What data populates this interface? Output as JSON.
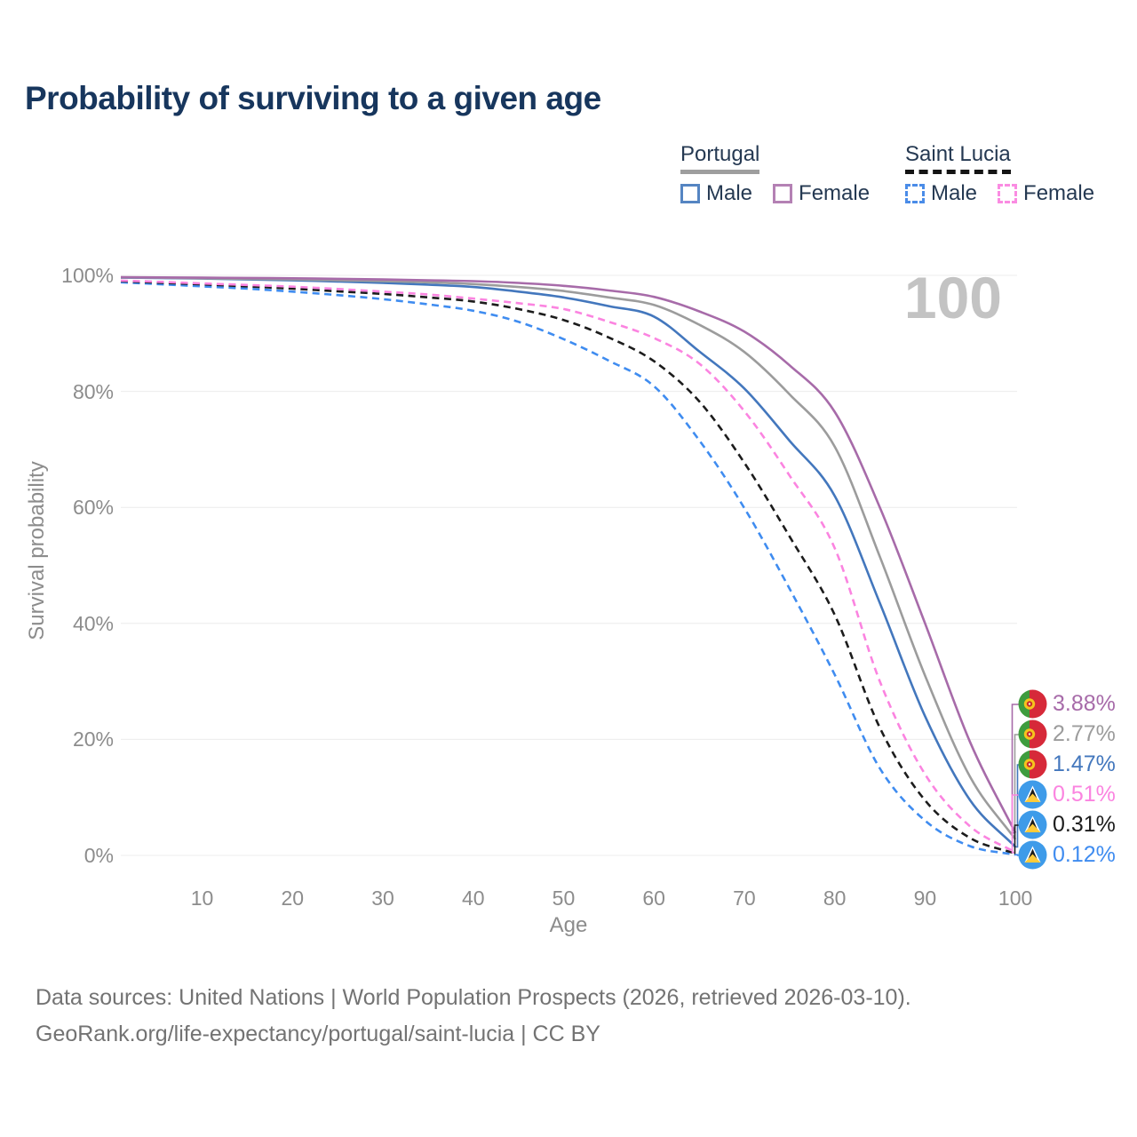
{
  "title": "Probability of surviving to a given age",
  "watermark": "100",
  "legend": {
    "groups": [
      {
        "id": "portugal",
        "label": "Portugal",
        "rule_style": "solid",
        "rule_color": "#9e9e9e",
        "items": [
          {
            "label": "Male",
            "color": "#5585c2",
            "style": "solid"
          },
          {
            "label": "Female",
            "color": "#b481b4",
            "style": "solid"
          }
        ]
      },
      {
        "id": "saint-lucia",
        "label": "Saint Lucia",
        "rule_style": "dashed",
        "rule_color": "#141414",
        "items": [
          {
            "label": "Male",
            "color": "#4a8ce8",
            "style": "dashed"
          },
          {
            "label": "Female",
            "color": "#fa8ce2",
            "style": "dashed"
          }
        ]
      }
    ]
  },
  "axes": {
    "x": {
      "label": "Age",
      "ticks": [
        10,
        20,
        30,
        40,
        50,
        60,
        70,
        80,
        90,
        100
      ]
    },
    "y": {
      "label": "Survival probability",
      "ticks": [
        "100%",
        "80%",
        "60%",
        "40%",
        "20%",
        "0%"
      ],
      "tick_values": [
        100,
        80,
        60,
        40,
        20,
        0
      ]
    }
  },
  "end_labels": [
    {
      "country": "portugal",
      "flag_icon": "portugal-flag-icon",
      "value": "3.88%",
      "pct": 3.88,
      "color": "#a76ba9"
    },
    {
      "country": "portugal",
      "flag_icon": "portugal-flag-icon",
      "value": "2.77%",
      "pct": 2.77,
      "color": "#9c9c9c"
    },
    {
      "country": "portugal",
      "flag_icon": "portugal-flag-icon",
      "value": "1.47%",
      "pct": 1.47,
      "color": "#4377bd"
    },
    {
      "country": "saint-lucia",
      "flag_icon": "saint-lucia-flag-icon",
      "value": "0.51%",
      "pct": 0.51,
      "color": "#fb84e0"
    },
    {
      "country": "saint-lucia",
      "flag_icon": "saint-lucia-flag-icon",
      "value": "0.31%",
      "pct": 0.31,
      "color": "#1c1c1c"
    },
    {
      "country": "saint-lucia",
      "flag_icon": "saint-lucia-flag-icon",
      "value": "0.12%",
      "pct": 0.12,
      "color": "#3f8cf0"
    }
  ],
  "footer": {
    "line1": "Data sources: United Nations | World Population Prospects (2026, retrieved 2026-03-10).",
    "line2": "GeoRank.org/life-expectancy/portugal/saint-lucia | CC BY"
  },
  "chart_data": {
    "type": "line",
    "title": "Probability of surviving to a given age",
    "xlabel": "Age",
    "ylabel": "Survival probability",
    "xlim": [
      1,
      100
    ],
    "ylim": [
      0,
      100
    ],
    "grid": "horizontal-only",
    "legend_position": "top-right",
    "x": [
      1,
      5,
      10,
      15,
      20,
      25,
      30,
      35,
      40,
      45,
      50,
      55,
      60,
      65,
      70,
      75,
      80,
      85,
      90,
      95,
      100
    ],
    "series": [
      {
        "name": "Portugal Female",
        "color": "#a76ba9",
        "dash": false,
        "values": [
          99.7,
          99.65,
          99.6,
          99.55,
          99.5,
          99.4,
          99.3,
          99.15,
          99.0,
          98.7,
          98.2,
          97.4,
          96.3,
          93.8,
          90.3,
          84.5,
          76.5,
          60.0,
          40.0,
          19.5,
          3.88
        ]
      },
      {
        "name": "Portugal Both sexes",
        "color": "#9c9c9c",
        "dash": false,
        "values": [
          99.65,
          99.6,
          99.5,
          99.4,
          99.3,
          99.15,
          99.0,
          98.8,
          98.5,
          98.0,
          97.3,
          96.2,
          94.9,
          91.5,
          86.8,
          79.5,
          70.5,
          51.5,
          31.0,
          13.5,
          2.77
        ]
      },
      {
        "name": "Portugal Male",
        "color": "#4377bd",
        "dash": false,
        "values": [
          99.6,
          99.55,
          99.45,
          99.3,
          99.15,
          98.95,
          98.7,
          98.4,
          98.0,
          97.2,
          96.2,
          94.7,
          92.9,
          86.9,
          80.5,
          71.5,
          62.0,
          43.5,
          24.0,
          9.5,
          1.47
        ]
      },
      {
        "name": "Saint Lucia Female",
        "color": "#fb84e0",
        "dash": true,
        "values": [
          99.1,
          98.9,
          98.6,
          98.35,
          98.05,
          97.65,
          97.2,
          96.7,
          96.0,
          95.2,
          94.2,
          92.0,
          89.2,
          84.8,
          76.6,
          65.5,
          53.0,
          30.0,
          14.0,
          5.0,
          0.51
        ]
      },
      {
        "name": "Saint Lucia Both sexes",
        "color": "#1c1c1c",
        "dash": true,
        "values": [
          99.0,
          98.75,
          98.45,
          98.1,
          97.7,
          97.25,
          96.8,
          96.2,
          95.5,
          94.2,
          92.3,
          89.3,
          85.2,
          78.3,
          67.7,
          55.0,
          41.5,
          22.0,
          9.5,
          3.0,
          0.31
        ]
      },
      {
        "name": "Saint Lucia Male",
        "color": "#3f8cf0",
        "dash": true,
        "values": [
          98.8,
          98.5,
          98.1,
          97.7,
          97.2,
          96.6,
          95.9,
          95.0,
          93.9,
          92.0,
          89.0,
          85.3,
          80.9,
          71.6,
          59.9,
          46.0,
          31.2,
          15.0,
          6.0,
          1.6,
          0.12
        ]
      }
    ],
    "end_values_pct": [
      3.88,
      2.77,
      1.47,
      0.51,
      0.31,
      0.12
    ],
    "annotations": [
      {
        "text": "100",
        "role": "age-watermark",
        "position": "top-right"
      }
    ]
  }
}
